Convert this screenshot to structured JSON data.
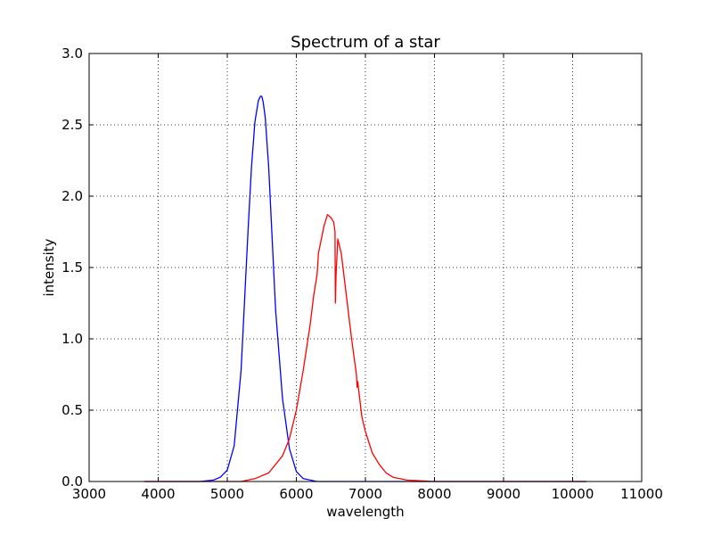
{
  "chart_data": {
    "type": "line",
    "title": "Spectrum of a star",
    "xlabel": "wavelength",
    "ylabel": "intensity",
    "xlim": [
      3000,
      11000
    ],
    "ylim": [
      0.0,
      3.0
    ],
    "x_ticks": [
      3000,
      4000,
      5000,
      6000,
      7000,
      8000,
      9000,
      10000,
      11000
    ],
    "x_tick_labels": [
      "3000",
      "4000",
      "5000",
      "6000",
      "7000",
      "8000",
      "9000",
      "10000",
      "11000"
    ],
    "y_ticks": [
      0.0,
      0.5,
      1.0,
      1.5,
      2.0,
      2.5,
      3.0
    ],
    "y_tick_labels": [
      "0.0",
      "0.5",
      "1.0",
      "1.5",
      "2.0",
      "2.5",
      "3.0"
    ],
    "grid": true,
    "series": [
      {
        "color": "#0000ff",
        "x": [
          3800,
          4600,
          4800,
          4900,
          5000,
          5100,
          5200,
          5300,
          5350,
          5400,
          5450,
          5480,
          5500,
          5520,
          5550,
          5600,
          5650,
          5700,
          5800,
          5900,
          6000,
          6100,
          6200,
          6300,
          6500,
          7000,
          8000,
          9000,
          10200
        ],
        "y": [
          0.0,
          0.0,
          0.01,
          0.03,
          0.08,
          0.25,
          0.78,
          1.75,
          2.2,
          2.52,
          2.67,
          2.7,
          2.7,
          2.66,
          2.55,
          2.2,
          1.7,
          1.2,
          0.58,
          0.23,
          0.07,
          0.02,
          0.01,
          0.0,
          0.0,
          0.0,
          0.0,
          0.0,
          0.0
        ]
      },
      {
        "color": "#ff0000",
        "x": [
          3800,
          5000,
          5200,
          5400,
          5600,
          5800,
          5900,
          6000,
          6100,
          6200,
          6250,
          6300,
          6310,
          6320,
          6400,
          6450,
          6500,
          6540,
          6560,
          6565,
          6575,
          6600,
          6650,
          6700,
          6750,
          6800,
          6850,
          6870,
          6880,
          6890,
          6900,
          6950,
          7000,
          7100,
          7200,
          7300,
          7400,
          7600,
          8000,
          9000,
          10200
        ],
        "y": [
          0.0,
          0.0,
          0.0,
          0.02,
          0.06,
          0.18,
          0.3,
          0.5,
          0.78,
          1.1,
          1.3,
          1.45,
          1.52,
          1.6,
          1.79,
          1.87,
          1.85,
          1.82,
          1.75,
          1.25,
          1.45,
          1.7,
          1.6,
          1.4,
          1.2,
          1.0,
          0.82,
          0.75,
          0.66,
          0.7,
          0.65,
          0.45,
          0.35,
          0.2,
          0.12,
          0.06,
          0.03,
          0.01,
          0.0,
          0.0,
          0.0
        ]
      }
    ]
  }
}
